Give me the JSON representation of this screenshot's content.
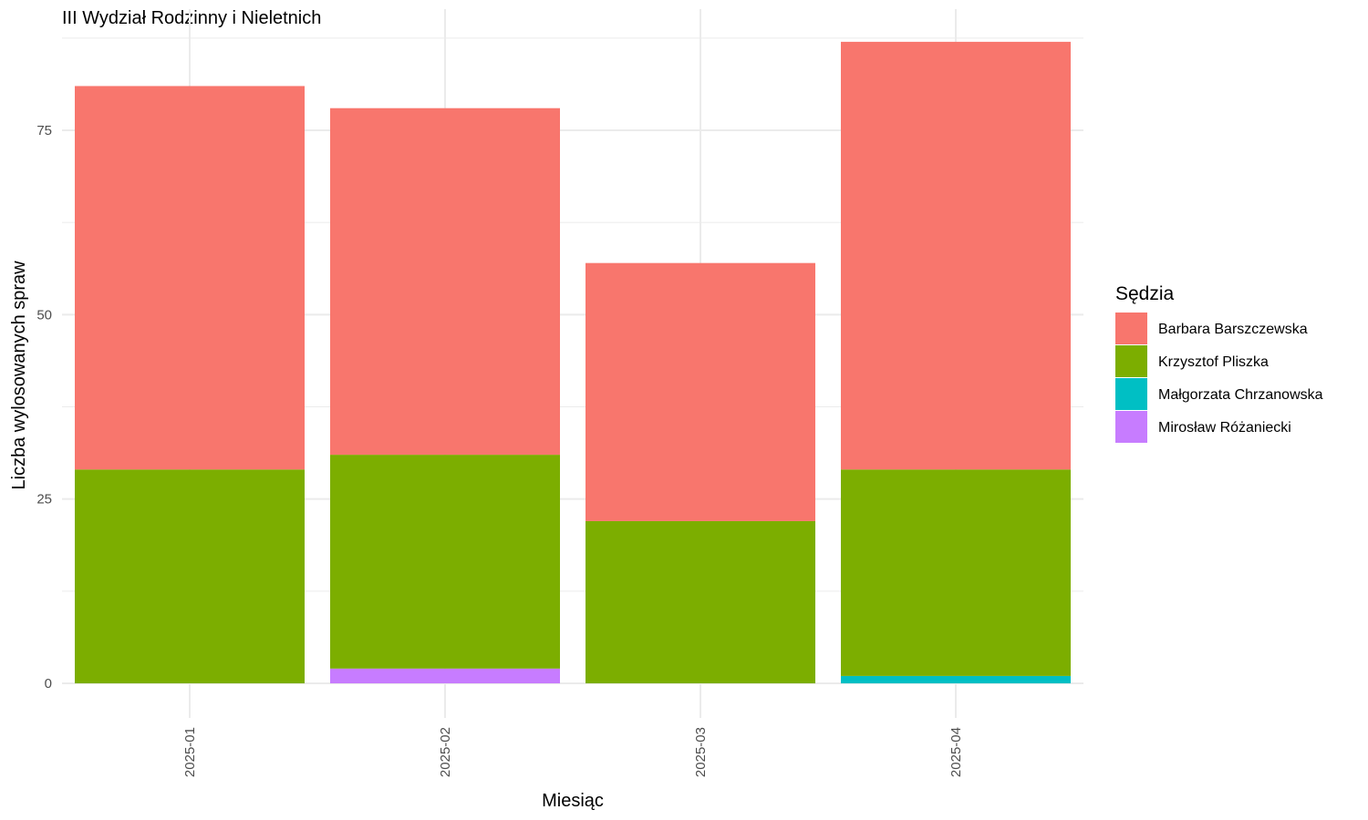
{
  "chart_data": {
    "type": "bar",
    "stacked": true,
    "title": "III Wydział Rodzinny i Nieletnich",
    "xlabel": "Miesiąc",
    "ylabel": "Liczba wylosowanych spraw",
    "categories": [
      "2025-01",
      "2025-02",
      "2025-03",
      "2025-04"
    ],
    "ylim": [
      0,
      90
    ],
    "yticks": [
      0,
      25,
      50,
      75
    ],
    "grid": true,
    "legend_position": "right",
    "legend_title": "Sędzia",
    "series": [
      {
        "name": "Barbara Barszczewska",
        "color": "#F8766D",
        "values": [
          52,
          47,
          35,
          58
        ]
      },
      {
        "name": "Krzysztof Pliszka",
        "color": "#7CAE00",
        "values": [
          29,
          29,
          22,
          28
        ]
      },
      {
        "name": "Małgorzata Chrzanowska",
        "color": "#00BFC4",
        "values": [
          0,
          0,
          0,
          1
        ]
      },
      {
        "name": "Mirosław Różaniecki",
        "color": "#C77CFF",
        "values": [
          0,
          2,
          0,
          0
        ]
      }
    ],
    "stack_order": [
      "Mirosław Różaniecki",
      "Małgorzata Chrzanowska",
      "Krzysztof Pliszka",
      "Barbara Barszczewska"
    ]
  }
}
